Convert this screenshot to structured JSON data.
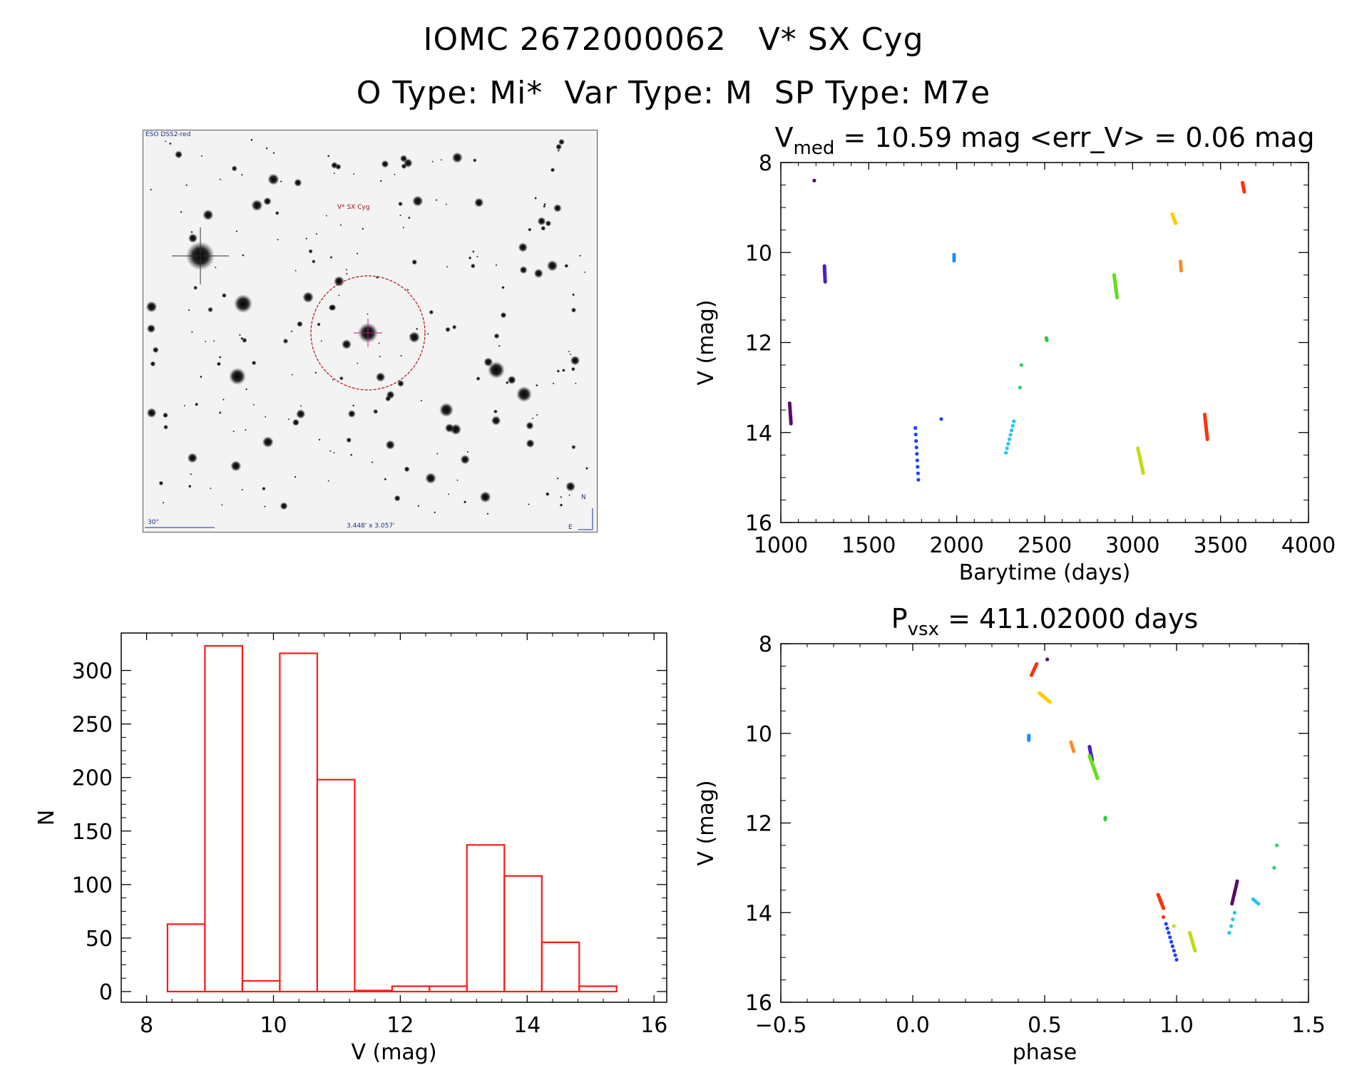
{
  "header": {
    "title": "IOMC 2672000062   V* SX Cyg",
    "subtitle": "O Type: Mi*  Var Type: M  SP Type: M7e"
  },
  "image_panel": {
    "survey_label": "ESO DSS2-red",
    "target_label": "V* SX Cyg",
    "scale_label": "30\"",
    "fov_label": "3.448' x 3.057'",
    "north_label": "N",
    "east_label": "E"
  },
  "colors": {
    "hist": "#ff1a1a",
    "axis": "#000000",
    "target_circle": "#b01010"
  },
  "chart_data": [
    {
      "id": "lightcurve",
      "type": "scatter",
      "title_main": "V",
      "title_sub": "med",
      "title_rest": " = 10.59 mag <err_V> = 0.06 mag",
      "xlabel": "Barytime (days)",
      "ylabel": "V (mag)",
      "xlim": [
        1000,
        4000
      ],
      "ylim": [
        16,
        8
      ],
      "y_inverted": true,
      "xticks": [
        1000,
        1500,
        2000,
        2500,
        3000,
        3500,
        4000
      ],
      "yticks": [
        8,
        10,
        12,
        14,
        16
      ],
      "groups": [
        {
          "color": "#5a0a6a",
          "t0": 1050,
          "t1": 1058,
          "m0": 13.35,
          "m1": 13.8,
          "n": 12
        },
        {
          "color": "#5a0a6a",
          "t0": 1190,
          "t1": 1190,
          "m0": 8.4,
          "m1": 8.4,
          "n": 1
        },
        {
          "color": "#4b1fc0",
          "t0": 1248,
          "t1": 1252,
          "m0": 10.3,
          "m1": 10.65,
          "n": 12
        },
        {
          "color": "#2040ff",
          "t0": 1765,
          "t1": 1782,
          "m0": 13.9,
          "m1": 15.05,
          "n": 9
        },
        {
          "color": "#2040ff",
          "t0": 1912,
          "t1": 1912,
          "m0": 13.7,
          "m1": 13.7,
          "n": 1
        },
        {
          "color": "#1a8cff",
          "t0": 1985,
          "t1": 1985,
          "m0": 10.05,
          "m1": 10.18,
          "n": 4
        },
        {
          "color": "#1fc8e8",
          "t0": 2280,
          "t1": 2325,
          "m0": 14.45,
          "m1": 13.75,
          "n": 8
        },
        {
          "color": "#2ed16e",
          "t0": 2360,
          "t1": 2368,
          "m0": 13.0,
          "m1": 12.5,
          "n": 2
        },
        {
          "color": "#33c940",
          "t0": 2510,
          "t1": 2512,
          "m0": 11.9,
          "m1": 11.95,
          "n": 3
        },
        {
          "color": "#66dd22",
          "t0": 2895,
          "t1": 2912,
          "m0": 10.5,
          "m1": 11.0,
          "n": 22
        },
        {
          "color": "#b8e01a",
          "t0": 3030,
          "t1": 3060,
          "m0": 14.35,
          "m1": 14.9,
          "n": 16
        },
        {
          "color": "#ffcc00",
          "t0": 3225,
          "t1": 3245,
          "m0": 9.15,
          "m1": 9.35,
          "n": 14
        },
        {
          "color": "#ff8a1a",
          "t0": 3272,
          "t1": 3276,
          "m0": 10.2,
          "m1": 10.4,
          "n": 5
        },
        {
          "color": "#ff3311",
          "t0": 3410,
          "t1": 3425,
          "m0": 13.6,
          "m1": 14.15,
          "n": 16
        },
        {
          "color": "#ff3311",
          "t0": 3625,
          "t1": 3635,
          "m0": 8.45,
          "m1": 8.65,
          "n": 8
        }
      ]
    },
    {
      "id": "histogram",
      "type": "bar",
      "xlabel": "V (mag)",
      "ylabel": "N",
      "xlim": [
        7.6,
        16.2
      ],
      "ylim": [
        -10,
        335
      ],
      "xticks": [
        8,
        10,
        12,
        14,
        16
      ],
      "yticks": [
        0,
        50,
        100,
        150,
        200,
        250,
        300
      ],
      "bin_edges": [
        8.33,
        8.92,
        9.51,
        10.1,
        10.69,
        11.28,
        11.87,
        12.46,
        13.05,
        13.64,
        14.23,
        14.82,
        15.41
      ],
      "values": [
        63,
        323,
        10,
        316,
        198,
        1,
        5,
        5,
        137,
        108,
        46,
        5
      ]
    },
    {
      "id": "phased",
      "type": "scatter",
      "title_main": "P",
      "title_sub": "vsx",
      "title_rest": " = 411.02000 days",
      "xlabel": "phase",
      "ylabel": "V (mag)",
      "xlim": [
        -0.5,
        1.5
      ],
      "ylim": [
        16,
        8
      ],
      "y_inverted": true,
      "xticks": [
        -0.5,
        0.0,
        0.5,
        1.0,
        1.5
      ],
      "xtick_labels": [
        "−0.5",
        "0.0",
        "0.5",
        "1.0",
        "1.5"
      ],
      "yticks": [
        8,
        10,
        12,
        14,
        16
      ],
      "groups": [
        {
          "color": "#5a0a6a",
          "t0": 0.51,
          "t1": 0.51,
          "m0": 8.35,
          "m1": 8.35,
          "n": 1
        },
        {
          "color": "#ff3311",
          "t0": 0.45,
          "t1": 0.47,
          "m0": 8.7,
          "m1": 8.45,
          "n": 8
        },
        {
          "color": "#ffcc00",
          "t0": 0.48,
          "t1": 0.52,
          "m0": 9.1,
          "m1": 9.3,
          "n": 14
        },
        {
          "color": "#1a8cff",
          "t0": 0.44,
          "t1": 0.44,
          "m0": 10.05,
          "m1": 10.15,
          "n": 4
        },
        {
          "color": "#ff8a1a",
          "t0": 0.6,
          "t1": 0.61,
          "m0": 10.2,
          "m1": 10.4,
          "n": 5
        },
        {
          "color": "#4b1fc0",
          "t0": 0.67,
          "t1": 0.68,
          "m0": 10.3,
          "m1": 10.6,
          "n": 12
        },
        {
          "color": "#66dd22",
          "t0": 0.67,
          "t1": 0.7,
          "m0": 10.5,
          "m1": 11.0,
          "n": 22
        },
        {
          "color": "#33c940",
          "t0": 0.73,
          "t1": 0.73,
          "m0": 11.88,
          "m1": 11.92,
          "n": 3
        },
        {
          "color": "#ff3311",
          "t0": 0.93,
          "t1": 0.95,
          "m0": 13.6,
          "m1": 13.9,
          "n": 16
        },
        {
          "color": "#ff3311",
          "t0": 0.95,
          "t1": 0.95,
          "m0": 14.1,
          "m1": 14.1,
          "n": 1
        },
        {
          "color": "#2040ff",
          "t0": 0.96,
          "t1": 1.0,
          "m0": 14.25,
          "m1": 15.05,
          "n": 9
        },
        {
          "color": "#b8e01a",
          "t0": 0.99,
          "t1": 0.99,
          "m0": 14.3,
          "m1": 14.3,
          "n": 1
        },
        {
          "color": "#b8e01a",
          "t0": 1.05,
          "t1": 1.07,
          "m0": 14.45,
          "m1": 14.85,
          "n": 15
        },
        {
          "color": "#1fc8e8",
          "t0": 1.2,
          "t1": 1.22,
          "m0": 14.45,
          "m1": 14.0,
          "n": 4
        },
        {
          "color": "#5a0a6a",
          "t0": 1.21,
          "t1": 1.23,
          "m0": 13.8,
          "m1": 13.3,
          "n": 12
        },
        {
          "color": "#1fc8e8",
          "t0": 1.29,
          "t1": 1.31,
          "m0": 13.7,
          "m1": 13.8,
          "n": 4
        },
        {
          "color": "#2ed16e",
          "t0": 1.37,
          "t1": 1.38,
          "m0": 13.0,
          "m1": 12.5,
          "n": 2
        }
      ]
    }
  ]
}
